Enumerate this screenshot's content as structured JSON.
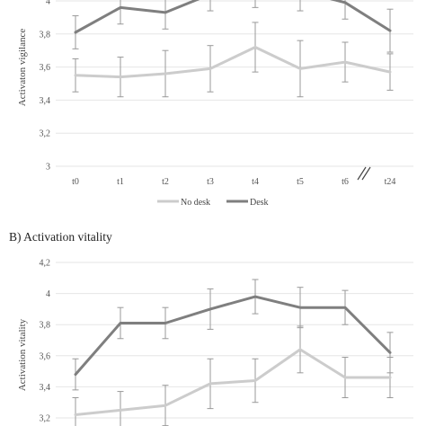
{
  "colors": {
    "no_desk": "#cccccc",
    "desk": "#7f7f7f",
    "error_bar": "#999999",
    "grid": "#e6e6e6"
  },
  "legend": [
    {
      "name": "No desk",
      "color": "#cccccc"
    },
    {
      "name": "Desk",
      "color": "#7f7f7f"
    }
  ],
  "chart_data": [
    {
      "type": "line",
      "panel_title": "",
      "ylabel": "Activaton vigilance",
      "categories": [
        "t0",
        "t1",
        "t2",
        "t3",
        "t4",
        "t5",
        "t6",
        "t24"
      ],
      "axis_break_between": [
        "t6",
        "t24"
      ],
      "ylim": [
        3,
        4
      ],
      "yticks": [
        "3",
        "3,2",
        "3,4",
        "3,6",
        "3,8",
        "4"
      ],
      "ytick_values": [
        3.0,
        3.2,
        3.4,
        3.6,
        3.8,
        4.0
      ],
      "grid": true,
      "legend_placement": "bottom",
      "series": [
        {
          "name": "No desk",
          "values": [
            3.55,
            3.54,
            3.56,
            3.59,
            3.72,
            3.59,
            3.63,
            3.57
          ],
          "errors": [
            0.1,
            0.12,
            0.14,
            0.14,
            0.15,
            0.17,
            0.12,
            0.11
          ]
        },
        {
          "name": "Desk",
          "values": [
            3.81,
            3.96,
            3.93,
            4.04,
            4.08,
            4.06,
            3.99,
            3.82
          ],
          "errors": [
            0.1,
            0.1,
            0.1,
            0.1,
            0.12,
            0.12,
            0.1,
            0.13
          ]
        }
      ]
    },
    {
      "type": "line",
      "panel_title": "B) Activation vitality",
      "ylabel": "Activation vitality",
      "categories": [
        "t0",
        "t1",
        "t2",
        "t3",
        "t4",
        "t5",
        "t6",
        "t24"
      ],
      "ylim": [
        3.2,
        4.2
      ],
      "yticks": [
        "3,2",
        "3,4",
        "3,6",
        "3,8",
        "4",
        "4,2"
      ],
      "ytick_values": [
        3.2,
        3.4,
        3.6,
        3.8,
        4.0,
        4.2
      ],
      "grid": true,
      "series": [
        {
          "name": "No desk",
          "values": [
            3.22,
            3.25,
            3.28,
            3.42,
            3.44,
            3.64,
            3.46,
            3.46
          ],
          "errors": [
            0.11,
            0.12,
            0.13,
            0.16,
            0.14,
            0.15,
            0.13,
            0.13
          ]
        },
        {
          "name": "Desk",
          "values": [
            3.48,
            3.81,
            3.81,
            3.9,
            3.98,
            3.91,
            3.91,
            3.62
          ],
          "errors": [
            0.1,
            0.1,
            0.1,
            0.13,
            0.11,
            0.13,
            0.11,
            0.13
          ]
        }
      ]
    }
  ]
}
